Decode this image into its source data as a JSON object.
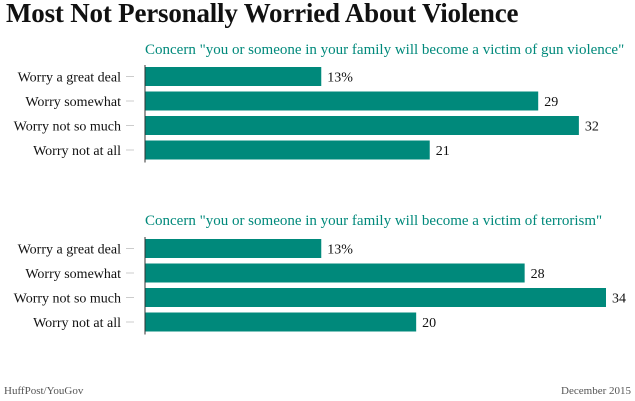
{
  "title": "Most Not Personally Worried About Violence",
  "source": "HuffPost/YouGov",
  "date": "December 2015",
  "colors": {
    "bar": "#00897b",
    "title_teal": "#00897b",
    "axis": "#333333"
  },
  "chart_data": [
    {
      "type": "bar",
      "orientation": "horizontal",
      "title": "Concern \"you or someone in your family will become a victim of gun violence\"",
      "categories": [
        "Worry a great deal",
        "Worry somewhat",
        "Worry not so much",
        "Worry not at all"
      ],
      "values": [
        13,
        29,
        32,
        21
      ],
      "data_labels": [
        "13%",
        "29",
        "32",
        "21"
      ],
      "xlim": [
        0,
        34
      ],
      "grid": false
    },
    {
      "type": "bar",
      "orientation": "horizontal",
      "title": "Concern \"you or someone in your family will become a victim of terrorism\"",
      "categories": [
        "Worry a great deal",
        "Worry somewhat",
        "Worry not so much",
        "Worry not at all"
      ],
      "values": [
        13,
        28,
        34,
        20
      ],
      "data_labels": [
        "13%",
        "28",
        "34",
        "20"
      ],
      "xlim": [
        0,
        34
      ],
      "grid": false
    }
  ]
}
